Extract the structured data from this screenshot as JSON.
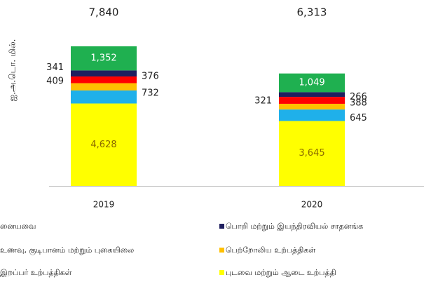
{
  "chart_data": {
    "type": "stacked_bar",
    "y_label": "ஐ.அ.டொ. மில்.",
    "categories": [
      "2019",
      "2020"
    ],
    "totals": [
      7840,
      6313
    ],
    "totals_labels": [
      "7,840",
      "6,313"
    ],
    "series": [
      {
        "name": "புடவை மற்றும் ஆடை உற்பத்தி",
        "color": "#ffff00",
        "values": [
          4628,
          3645
        ],
        "value_labels": [
          "4,628",
          "3,645"
        ]
      },
      {
        "name": "இறப்பர் உற்பத்திகள்",
        "color": "#1fb0ea",
        "values": [
          732,
          645
        ]
      },
      {
        "name": "பெற்றோலிய உற்பத்திகள்",
        "color": "#ffc000",
        "values": [
          409,
          321
        ]
      },
      {
        "name": "உணவு, குடிபானம் மற்றும் புகையிலை",
        "color": "#ff0000",
        "values": [
          376,
          388
        ]
      },
      {
        "name": "பொறி மற்றும் இயந்திரவியல் சாதனங்க",
        "color": "#1f1f5f",
        "values": [
          341,
          266
        ]
      },
      {
        "name": "னையவை",
        "color": "#1fb050",
        "values": [
          1352,
          1049
        ],
        "value_labels": [
          "1,352",
          "1,049"
        ]
      }
    ]
  }
}
